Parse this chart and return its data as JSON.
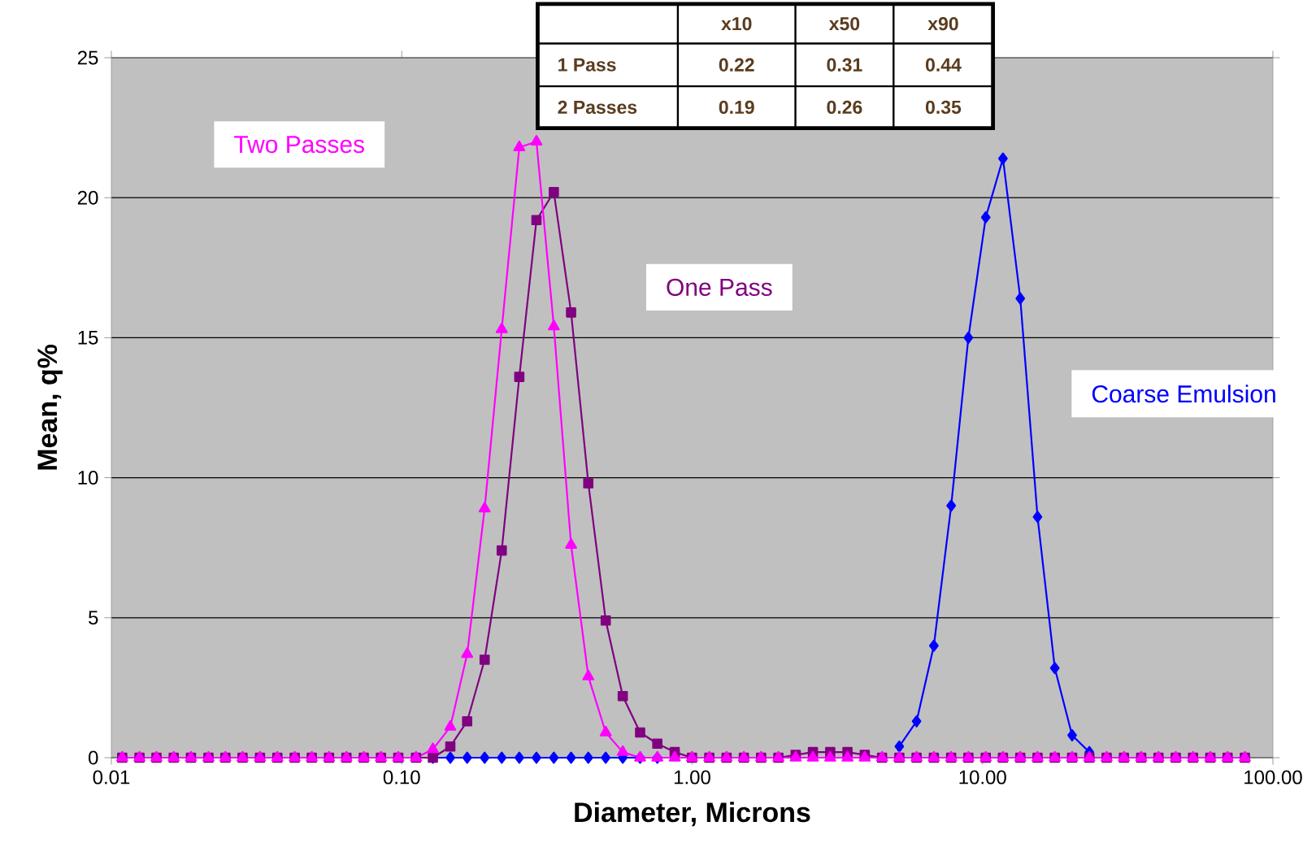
{
  "chart_data": {
    "type": "line",
    "xlabel": "Diameter, Microns",
    "ylabel": "Mean, q%",
    "log": "x",
    "grid": "y",
    "xlim": [
      0.01,
      100
    ],
    "ylim": [
      0,
      25
    ],
    "xticks": [
      {
        "value": 0.01,
        "label": "0.01"
      },
      {
        "value": 0.1,
        "label": "0.10"
      },
      {
        "value": 1,
        "label": "1.00"
      },
      {
        "value": 10,
        "label": "10.00"
      },
      {
        "value": 100,
        "label": "100.00"
      }
    ],
    "yticks": [
      0,
      5,
      10,
      15,
      20,
      25
    ],
    "x": [
      0.0109,
      0.0125,
      0.0143,
      0.0164,
      0.0188,
      0.0216,
      0.0247,
      0.0283,
      0.0325,
      0.0373,
      0.0428,
      0.049,
      0.0562,
      0.0645,
      0.074,
      0.0848,
      0.0973,
      0.112,
      0.128,
      0.147,
      0.168,
      0.193,
      0.221,
      0.254,
      0.291,
      0.334,
      0.383,
      0.439,
      0.504,
      0.577,
      0.662,
      0.759,
      0.871,
      0.999,
      1.146,
      1.314,
      1.507,
      1.728,
      1.982,
      2.273,
      2.606,
      2.989,
      3.428,
      3.931,
      4.508,
      5.17,
      5.929,
      6.8,
      7.8,
      8.94,
      10.26,
      11.76,
      13.49,
      15.47,
      17.74,
      20.35,
      23.33,
      26.76,
      30.69,
      35.2,
      40.36,
      46.29,
      53.09,
      60.89,
      69.82,
      80.08
    ],
    "series": [
      {
        "name": "Coarse Emulsion",
        "color": "#0000ff",
        "marker": "diamond",
        "values": [
          null,
          null,
          null,
          null,
          null,
          null,
          null,
          null,
          null,
          null,
          null,
          null,
          null,
          null,
          null,
          null,
          null,
          null,
          0,
          0,
          0,
          0,
          0,
          0,
          0,
          0,
          0,
          0,
          0,
          0,
          0,
          0,
          null,
          null,
          null,
          null,
          null,
          null,
          null,
          null,
          null,
          null,
          null,
          null,
          null,
          0.4,
          1.3,
          4.0,
          9.0,
          15.0,
          19.3,
          21.4,
          16.4,
          8.6,
          3.2,
          0.8,
          0.2,
          null,
          null,
          null,
          null,
          null,
          null,
          null,
          null,
          null
        ]
      },
      {
        "name": "One Pass",
        "color": "#800080",
        "marker": "square",
        "values": [
          0,
          0,
          0,
          0,
          0,
          0,
          0,
          0,
          0,
          0,
          0,
          0,
          0,
          0,
          0,
          0,
          0,
          0,
          0,
          0.4,
          1.3,
          3.5,
          7.4,
          13.6,
          19.2,
          20.2,
          15.9,
          9.8,
          4.9,
          2.2,
          0.9,
          0.5,
          0.2,
          0,
          0,
          0,
          0,
          0,
          0,
          0.1,
          0.2,
          0.2,
          0.2,
          0.1,
          0,
          0,
          0,
          0,
          0,
          0,
          0,
          0,
          0,
          0,
          0,
          0,
          0,
          0,
          0,
          0,
          0,
          0,
          0,
          0,
          0,
          0
        ]
      },
      {
        "name": "Two Passes",
        "color": "#ff00ff",
        "marker": "triangle",
        "values": [
          0,
          0,
          0,
          0,
          0,
          0,
          0,
          0,
          0,
          0,
          0,
          0,
          0,
          0,
          0,
          0,
          0,
          0,
          0.3,
          1.1,
          3.7,
          8.9,
          15.3,
          21.8,
          22.0,
          15.4,
          7.6,
          2.9,
          0.9,
          0.2,
          0,
          0,
          0,
          0,
          0,
          0,
          0,
          0,
          0,
          0,
          0,
          0,
          0,
          0,
          0,
          0,
          0,
          0,
          0,
          0,
          0,
          0,
          0,
          0,
          0,
          0,
          0,
          0,
          0,
          0,
          0,
          0,
          0,
          0,
          0,
          0
        ]
      }
    ],
    "annotations": [
      "x10",
      "x50",
      "x90",
      "1 Pass",
      "0.22",
      "0.31",
      "0.44",
      "2 Passes",
      "0.19",
      "0.26",
      "0.35"
    ]
  }
}
